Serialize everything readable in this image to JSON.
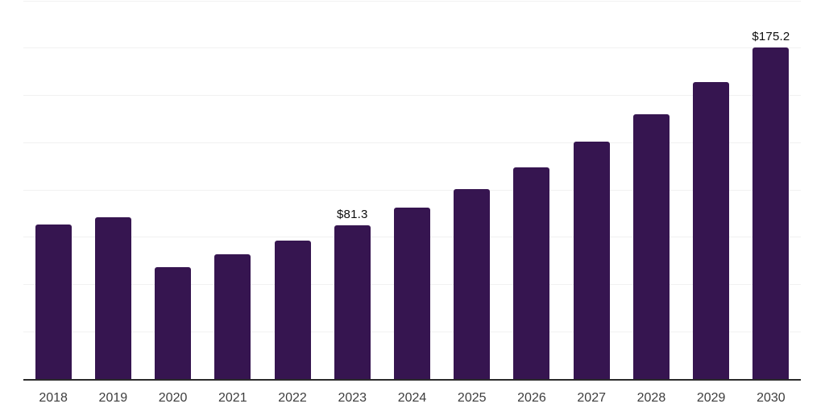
{
  "chart_data": {
    "type": "bar",
    "title": "",
    "xlabel": "",
    "ylabel": "",
    "categories": [
      "2018",
      "2019",
      "2020",
      "2021",
      "2022",
      "2023",
      "2024",
      "2025",
      "2026",
      "2027",
      "2028",
      "2029",
      "2030"
    ],
    "values": [
      81.5,
      85.4,
      59.1,
      65.9,
      73.0,
      81.3,
      90.6,
      100.5,
      112.0,
      125.7,
      140.0,
      156.9,
      175.2
    ],
    "value_labels": [
      "",
      "",
      "",
      "",
      "",
      "$81.3",
      "",
      "",
      "",
      "",
      "",
      "",
      "$175.2"
    ],
    "ylim": [
      0,
      200
    ],
    "grid_step": 25,
    "gridlines": "horizontal",
    "y_tick_labels_visible": false,
    "legend": false,
    "colors": {
      "bar": "#361550",
      "gridline": "#f1f1f1",
      "axis_line": "#2b2b2b",
      "tick_label": "#3d3d3d",
      "value_label": "#0d0d0d",
      "background": "#ffffff"
    }
  }
}
